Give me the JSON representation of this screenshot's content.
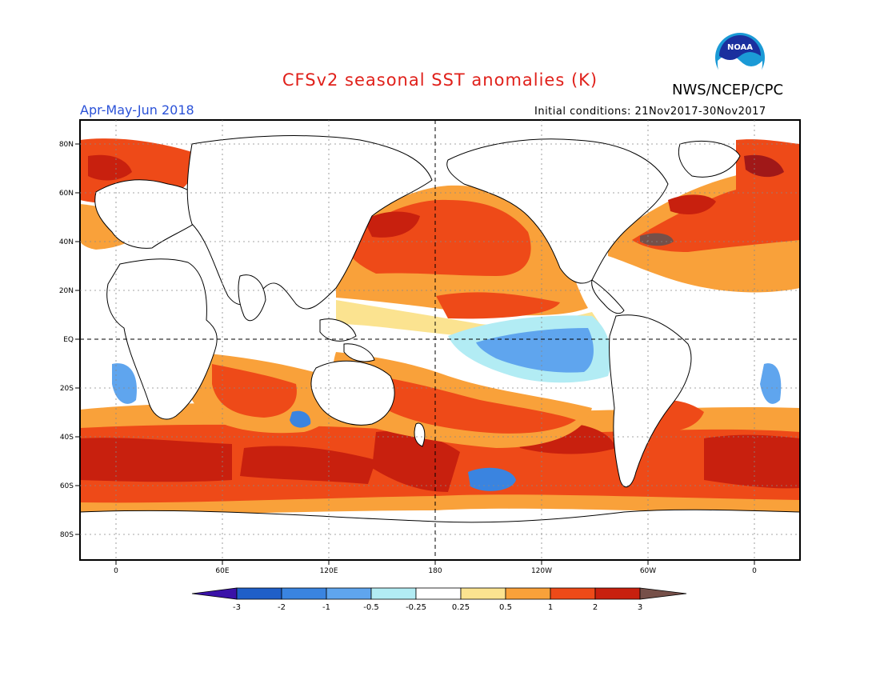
{
  "header": {
    "title": "CFSv2 seasonal SST anomalies (K)",
    "agency": "NWS/NCEP/CPC",
    "season": "Apr-May-Jun 2018",
    "initial_conditions": "Initial conditions: 21Nov2017-30Nov2017",
    "logo_text": "NOAA"
  },
  "map": {
    "lat_labels": [
      "80N",
      "60N",
      "40N",
      "20N",
      "EQ",
      "20S",
      "40S",
      "60S",
      "80S"
    ],
    "lon_labels": [
      "0",
      "60E",
      "120E",
      "180",
      "120W",
      "60W",
      "0"
    ]
  },
  "colorbar": {
    "labels": [
      "-3",
      "-2",
      "-1",
      "-0.5",
      "-0.25",
      "0.25",
      "0.5",
      "1",
      "2",
      "3"
    ],
    "colors": [
      "#3a12a8",
      "#1f5fc8",
      "#3a84e0",
      "#5fa5ee",
      "#b2ecf4",
      "#ffffff",
      "#fbe390",
      "#f9a13a",
      "#ee4a18",
      "#c8200e",
      "#a01818",
      "#765049"
    ]
  }
}
